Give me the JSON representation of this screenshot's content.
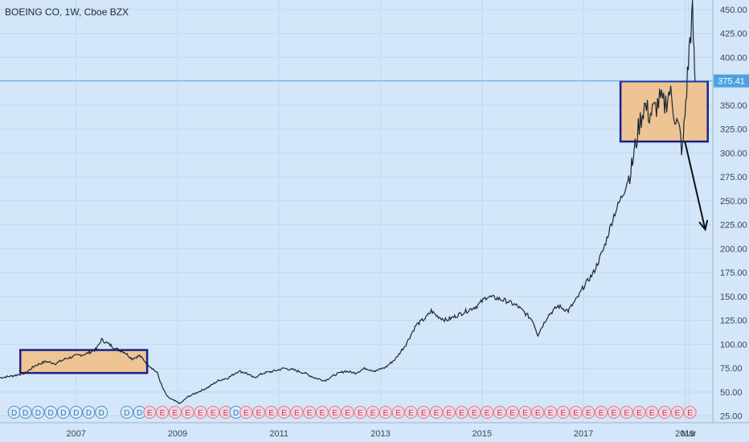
{
  "chart_data": {
    "type": "line",
    "title": "BOEING CO, 1W, Cboe BZX",
    "last_price": "375.41",
    "colors": {
      "background": "#d3e6fa",
      "price_line": "#1c2733",
      "box_fill": "#f2bd82",
      "box_border": "#1c1f8a",
      "last_price_line": "#5aa9e6",
      "last_price_badge": "#4aa3df",
      "arrow": "#111111"
    },
    "y_ticks": [
      "450.00",
      "425.00",
      "400.00",
      "375.00",
      "350.00",
      "325.00",
      "300.00",
      "275.00",
      "250.00",
      "225.00",
      "200.00",
      "175.00",
      "150.00",
      "125.00",
      "100.00",
      "75.00",
      "50.00",
      "25.00"
    ],
    "x_ticks": [
      "2007",
      "2009",
      "2011",
      "2013",
      "2015",
      "2017",
      "2019",
      "Mar"
    ],
    "ylim": [
      18,
      460
    ],
    "xlim": [
      2005.5,
      2019.55
    ],
    "series": [
      {
        "x": [
          2005.5,
          2005.75,
          2006.0,
          2006.2,
          2006.4,
          2006.6,
          2006.8,
          2007.0,
          2007.2,
          2007.4,
          2007.5,
          2007.65,
          2007.8,
          2007.95,
          2008.1,
          2008.25,
          2008.4,
          2008.5,
          2008.6,
          2008.7,
          2008.8,
          2008.9,
          2009.05,
          2009.2,
          2009.4,
          2009.6,
          2009.8,
          2010.0,
          2010.2,
          2010.35,
          2010.5,
          2010.7,
          2010.9,
          2011.1,
          2011.3,
          2011.5,
          2011.7,
          2011.9,
          2012.1,
          2012.3,
          2012.5,
          2012.7,
          2012.9,
          2013.1,
          2013.3,
          2013.5,
          2013.7,
          2013.9,
          2014.0,
          2014.1,
          2014.3,
          2014.5,
          2014.7,
          2014.9,
          2015.0,
          2015.1,
          2015.3,
          2015.5,
          2015.7,
          2015.9,
          2016.0,
          2016.1,
          2016.3,
          2016.5,
          2016.7,
          2016.9,
          2017.0,
          2017.2,
          2017.4,
          2017.6,
          2017.8,
          2017.95,
          2018.0,
          2018.1,
          2018.2,
          2018.3,
          2018.4,
          2018.5,
          2018.6,
          2018.7,
          2018.8,
          2018.9,
          2018.95,
          2019.0,
          2019.05,
          2019.1,
          2019.15,
          2019.18,
          2019.2
        ],
        "y": [
          65,
          67,
          70,
          78,
          82,
          80,
          85,
          88,
          90,
          95,
          105,
          100,
          95,
          92,
          85,
          88,
          80,
          75,
          70,
          55,
          45,
          42,
          38,
          45,
          50,
          55,
          62,
          65,
          72,
          70,
          65,
          70,
          72,
          75,
          73,
          70,
          65,
          62,
          68,
          72,
          70,
          75,
          72,
          76,
          85,
          100,
          120,
          128,
          135,
          130,
          125,
          130,
          135,
          140,
          145,
          150,
          148,
          145,
          140,
          130,
          125,
          110,
          130,
          140,
          135,
          150,
          160,
          175,
          200,
          235,
          260,
          285,
          300,
          330,
          350,
          340,
          345,
          355,
          350,
          365,
          340,
          320,
          300,
          340,
          380,
          420,
          445,
          400,
          375
        ]
      }
    ],
    "grid": true,
    "annotations": [
      {
        "type": "rectangle",
        "x0": 2005.9,
        "x1": 2008.4,
        "y0": 70,
        "y1": 94
      },
      {
        "type": "rectangle",
        "x0": 2017.73,
        "x1": 2019.45,
        "y0": 312,
        "y1": 375
      },
      {
        "type": "horizontal_line",
        "y": 375.41
      },
      {
        "type": "arrow",
        "x0": 2019.0,
        "y0": 312,
        "x1": 2019.4,
        "y1": 220
      }
    ],
    "event_markers": [
      {
        "x": 2005.78,
        "label": "D"
      },
      {
        "x": 2006.0,
        "label": "D"
      },
      {
        "x": 2006.25,
        "label": "D"
      },
      {
        "x": 2006.5,
        "label": "D"
      },
      {
        "x": 2006.75,
        "label": "D"
      },
      {
        "x": 2007.0,
        "label": "D"
      },
      {
        "x": 2007.25,
        "label": "D"
      },
      {
        "x": 2007.5,
        "label": "D"
      },
      {
        "x": 2008.0,
        "label": "D"
      },
      {
        "x": 2008.25,
        "label": "D"
      },
      {
        "x": 2008.45,
        "label": "E"
      },
      {
        "x": 2008.7,
        "label": "E"
      },
      {
        "x": 2008.95,
        "label": "E"
      },
      {
        "x": 2009.2,
        "label": "E"
      },
      {
        "x": 2009.45,
        "label": "E"
      },
      {
        "x": 2009.7,
        "label": "E"
      },
      {
        "x": 2009.95,
        "label": "E"
      },
      {
        "x": 2010.15,
        "label": "D"
      },
      {
        "x": 2010.35,
        "label": "E"
      },
      {
        "x": 2010.6,
        "label": "E"
      },
      {
        "x": 2010.85,
        "label": "E"
      },
      {
        "x": 2011.1,
        "label": "E"
      },
      {
        "x": 2011.35,
        "label": "E"
      },
      {
        "x": 2011.6,
        "label": "E"
      },
      {
        "x": 2011.85,
        "label": "E"
      },
      {
        "x": 2012.1,
        "label": "E"
      },
      {
        "x": 2012.35,
        "label": "E"
      },
      {
        "x": 2012.6,
        "label": "E"
      },
      {
        "x": 2012.85,
        "label": "E"
      },
      {
        "x": 2013.1,
        "label": "E"
      },
      {
        "x": 2013.35,
        "label": "E"
      },
      {
        "x": 2013.6,
        "label": "E"
      },
      {
        "x": 2013.85,
        "label": "E"
      },
      {
        "x": 2014.1,
        "label": "E"
      },
      {
        "x": 2014.35,
        "label": "E"
      },
      {
        "x": 2014.6,
        "label": "E"
      },
      {
        "x": 2014.85,
        "label": "E"
      },
      {
        "x": 2015.1,
        "label": "E"
      },
      {
        "x": 2015.35,
        "label": "E"
      },
      {
        "x": 2015.6,
        "label": "E"
      },
      {
        "x": 2015.85,
        "label": "E"
      },
      {
        "x": 2016.1,
        "label": "E"
      },
      {
        "x": 2016.35,
        "label": "E"
      },
      {
        "x": 2016.6,
        "label": "E"
      },
      {
        "x": 2016.85,
        "label": "E"
      },
      {
        "x": 2017.1,
        "label": "E"
      },
      {
        "x": 2017.35,
        "label": "E"
      },
      {
        "x": 2017.6,
        "label": "E"
      },
      {
        "x": 2017.85,
        "label": "E"
      },
      {
        "x": 2018.1,
        "label": "E"
      },
      {
        "x": 2018.35,
        "label": "E"
      },
      {
        "x": 2018.6,
        "label": "E"
      },
      {
        "x": 2018.85,
        "label": "E"
      },
      {
        "x": 2019.1,
        "label": "E"
      }
    ]
  }
}
